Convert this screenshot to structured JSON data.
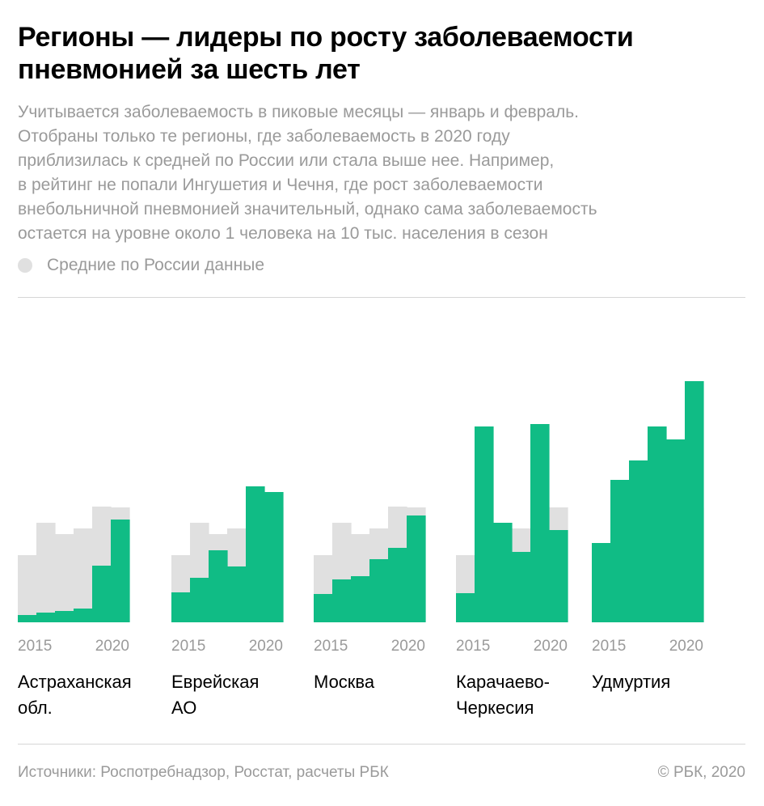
{
  "title_lines": [
    "Регионы — лидеры по росту заболеваемости",
    "пневмонией за шесть лет"
  ],
  "subtitle_lines": [
    "Учитывается заболеваемость в пиковые месяцы — январь и февраль.",
    "Отобраны только те регионы, где заболеваемость в 2020 году",
    "приблизилась к средней по России или стала выше нее. Например,",
    "в рейтинг не попали Ингушетия и Чечня, где рост заболеваемости",
    "внебольничной пневмонией значительный, однако сама заболеваемость",
    "остается на уровне около 1 человека на 10 тыс. населения в сезон"
  ],
  "legend": {
    "label": "Средние по России данные",
    "color": "#e0e0e0"
  },
  "colors": {
    "region": "#10bc85",
    "russia_average": "#e0e0e0"
  },
  "source": "Источники: Роспотребнадзор, Росстат, расчеты РБК",
  "copyright": "© РБК, 2020",
  "chart_data": {
    "type": "bar",
    "categories": [
      "2015",
      "2016",
      "2017",
      "2018",
      "2019",
      "2020"
    ],
    "tick_labels": [
      "2015",
      "2020"
    ],
    "ylim": [
      0,
      300
    ],
    "grid": false,
    "legend_placement": "top-left",
    "russia_average": [
      83,
      123,
      109,
      116,
      143,
      142
    ],
    "panels": [
      {
        "region_lines": [
          "Астраханская",
          "обл."
        ],
        "values": [
          9,
          12,
          14,
          17,
          70,
          127
        ]
      },
      {
        "region_lines": [
          "Еврейская",
          "АО"
        ],
        "values": [
          37,
          55,
          89,
          69,
          168,
          161
        ]
      },
      {
        "region_lines": [
          "Москва"
        ],
        "values": [
          35,
          53,
          57,
          78,
          92,
          132
        ]
      },
      {
        "region_lines": [
          "Карачаево-",
          "Черкесия"
        ],
        "values": [
          36,
          242,
          123,
          87,
          245,
          114
        ]
      },
      {
        "region_lines": [
          "Удмуртия"
        ],
        "values": [
          98,
          176,
          200,
          242,
          226,
          298
        ]
      }
    ]
  }
}
